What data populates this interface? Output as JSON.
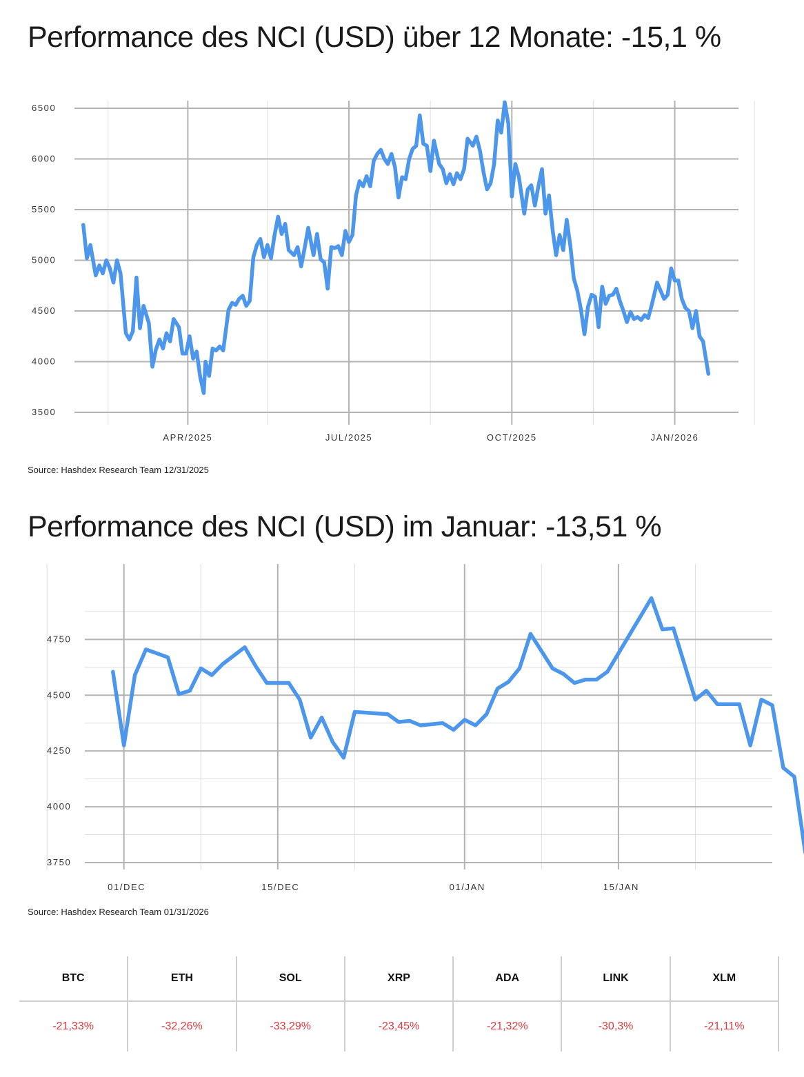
{
  "charts": {
    "annual": {
      "title": "Performance des NCI (USD) über 12 Monate: -15,1 %",
      "source": "Source: Hashdex Research Team 12/31/2025"
    },
    "monthly": {
      "title": "Performance des NCI (USD) im Januar: -13,51 %",
      "source": "Source: Hashdex Research Team 01/31/2026"
    }
  },
  "colors": {
    "line": "#4c96ec",
    "grid_major": "#b3b3b3",
    "grid_minor": "#dedede",
    "negative": "#e0393e"
  },
  "chart_data": [
    {
      "type": "line",
      "title": "Performance des NCI (USD) über 12 Monate: -15,1 %",
      "xlabel": "",
      "ylabel": "",
      "ylim": [
        3500,
        6500
      ],
      "y_ticks": [
        3500,
        4000,
        4500,
        5000,
        5500,
        6000,
        6500
      ],
      "xlim": [
        "2025-01-27",
        "2026-02-06"
      ],
      "x_ticks": [
        {
          "x": "2025-04-01",
          "label": "APR/2025"
        },
        {
          "x": "2025-07-01",
          "label": "JUL/2025"
        },
        {
          "x": "2025-10-01",
          "label": "OCT/2025"
        },
        {
          "x": "2026-01-01",
          "label": "JAN/2026"
        }
      ],
      "x_minor": [
        "2025-02-15",
        "2025-05-16",
        "2025-08-16",
        "2025-11-16",
        "2026-02-15"
      ],
      "grid": true,
      "series": [
        {
          "points": [
            [
              "2025-02-01",
              5350
            ],
            [
              "2025-02-03",
              5020
            ],
            [
              "2025-02-05",
              5150
            ],
            [
              "2025-02-08",
              4850
            ],
            [
              "2025-02-10",
              4950
            ],
            [
              "2025-02-12",
              4870
            ],
            [
              "2025-02-14",
              5000
            ],
            [
              "2025-02-16",
              4920
            ],
            [
              "2025-02-18",
              4780
            ],
            [
              "2025-02-20",
              5000
            ],
            [
              "2025-02-22",
              4870
            ],
            [
              "2025-02-25",
              4280
            ],
            [
              "2025-02-27",
              4220
            ],
            [
              "2025-03-01",
              4300
            ],
            [
              "2025-03-03",
              4830
            ],
            [
              "2025-03-05",
              4330
            ],
            [
              "2025-03-07",
              4550
            ],
            [
              "2025-03-10",
              4380
            ],
            [
              "2025-03-12",
              3950
            ],
            [
              "2025-03-14",
              4120
            ],
            [
              "2025-03-16",
              4220
            ],
            [
              "2025-03-18",
              4130
            ],
            [
              "2025-03-20",
              4280
            ],
            [
              "2025-03-22",
              4200
            ],
            [
              "2025-03-24",
              4420
            ],
            [
              "2025-03-27",
              4340
            ],
            [
              "2025-03-29",
              4080
            ],
            [
              "2025-03-31",
              4080
            ],
            [
              "2025-04-02",
              4250
            ],
            [
              "2025-04-04",
              4030
            ],
            [
              "2025-04-06",
              4100
            ],
            [
              "2025-04-08",
              3850
            ],
            [
              "2025-04-10",
              3690
            ],
            [
              "2025-04-11",
              4000
            ],
            [
              "2025-04-13",
              3860
            ],
            [
              "2025-04-15",
              4130
            ],
            [
              "2025-04-17",
              4110
            ],
            [
              "2025-04-19",
              4150
            ],
            [
              "2025-04-21",
              4110
            ],
            [
              "2025-04-24",
              4510
            ],
            [
              "2025-04-26",
              4580
            ],
            [
              "2025-04-28",
              4560
            ],
            [
              "2025-04-30",
              4620
            ],
            [
              "2025-05-02",
              4650
            ],
            [
              "2025-05-04",
              4550
            ],
            [
              "2025-05-06",
              4600
            ],
            [
              "2025-05-08",
              5030
            ],
            [
              "2025-05-10",
              5150
            ],
            [
              "2025-05-12",
              5210
            ],
            [
              "2025-05-14",
              5030
            ],
            [
              "2025-05-16",
              5150
            ],
            [
              "2025-05-18",
              5020
            ],
            [
              "2025-05-20",
              5250
            ],
            [
              "2025-05-22",
              5430
            ],
            [
              "2025-05-24",
              5260
            ],
            [
              "2025-05-26",
              5360
            ],
            [
              "2025-05-28",
              5100
            ],
            [
              "2025-05-31",
              5050
            ],
            [
              "2025-06-02",
              5130
            ],
            [
              "2025-06-04",
              4940
            ],
            [
              "2025-06-06",
              5120
            ],
            [
              "2025-06-08",
              5320
            ],
            [
              "2025-06-11",
              5050
            ],
            [
              "2025-06-13",
              5260
            ],
            [
              "2025-06-15",
              5010
            ],
            [
              "2025-06-17",
              4980
            ],
            [
              "2025-06-19",
              4720
            ],
            [
              "2025-06-21",
              5130
            ],
            [
              "2025-06-23",
              5120
            ],
            [
              "2025-06-25",
              5140
            ],
            [
              "2025-06-27",
              5050
            ],
            [
              "2025-06-29",
              5290
            ],
            [
              "2025-07-01",
              5180
            ],
            [
              "2025-07-03",
              5250
            ],
            [
              "2025-07-05",
              5640
            ],
            [
              "2025-07-07",
              5780
            ],
            [
              "2025-07-09",
              5730
            ],
            [
              "2025-07-11",
              5830
            ],
            [
              "2025-07-13",
              5730
            ],
            [
              "2025-07-15",
              5980
            ],
            [
              "2025-07-17",
              6050
            ],
            [
              "2025-07-19",
              6090
            ],
            [
              "2025-07-21",
              6000
            ],
            [
              "2025-07-23",
              5950
            ],
            [
              "2025-07-25",
              6050
            ],
            [
              "2025-07-27",
              5920
            ],
            [
              "2025-07-29",
              5620
            ],
            [
              "2025-07-31",
              5820
            ],
            [
              "2025-08-02",
              5800
            ],
            [
              "2025-08-04",
              6000
            ],
            [
              "2025-08-06",
              6100
            ],
            [
              "2025-08-08",
              6130
            ],
            [
              "2025-08-10",
              6430
            ],
            [
              "2025-08-12",
              6150
            ],
            [
              "2025-08-14",
              6130
            ],
            [
              "2025-08-16",
              5880
            ],
            [
              "2025-08-18",
              6180
            ],
            [
              "2025-08-21",
              5950
            ],
            [
              "2025-08-23",
              5900
            ],
            [
              "2025-08-25",
              5760
            ],
            [
              "2025-08-27",
              5850
            ],
            [
              "2025-08-29",
              5750
            ],
            [
              "2025-08-31",
              5860
            ],
            [
              "2025-09-02",
              5800
            ],
            [
              "2025-09-04",
              5900
            ],
            [
              "2025-09-06",
              6200
            ],
            [
              "2025-09-09",
              6130
            ],
            [
              "2025-09-11",
              6220
            ],
            [
              "2025-09-13",
              6080
            ],
            [
              "2025-09-15",
              5870
            ],
            [
              "2025-09-17",
              5700
            ],
            [
              "2025-09-19",
              5760
            ],
            [
              "2025-09-21",
              5950
            ],
            [
              "2025-09-23",
              6380
            ],
            [
              "2025-09-25",
              6260
            ],
            [
              "2025-09-27",
              6560
            ],
            [
              "2025-09-29",
              6350
            ],
            [
              "2025-10-01",
              5630
            ],
            [
              "2025-10-03",
              5950
            ],
            [
              "2025-10-05",
              5820
            ],
            [
              "2025-10-08",
              5460
            ],
            [
              "2025-10-10",
              5700
            ],
            [
              "2025-10-12",
              5740
            ],
            [
              "2025-10-14",
              5540
            ],
            [
              "2025-10-16",
              5730
            ],
            [
              "2025-10-18",
              5900
            ],
            [
              "2025-10-20",
              5460
            ],
            [
              "2025-10-22",
              5640
            ],
            [
              "2025-10-24",
              5300
            ],
            [
              "2025-10-26",
              5050
            ],
            [
              "2025-10-28",
              5250
            ],
            [
              "2025-10-30",
              5100
            ],
            [
              "2025-11-01",
              5400
            ],
            [
              "2025-11-03",
              5150
            ],
            [
              "2025-11-05",
              4820
            ],
            [
              "2025-11-07",
              4700
            ],
            [
              "2025-11-09",
              4520
            ],
            [
              "2025-11-11",
              4270
            ],
            [
              "2025-11-13",
              4540
            ],
            [
              "2025-11-15",
              4660
            ],
            [
              "2025-11-17",
              4640
            ],
            [
              "2025-11-19",
              4340
            ],
            [
              "2025-11-21",
              4740
            ],
            [
              "2025-11-23",
              4570
            ],
            [
              "2025-11-25",
              4650
            ],
            [
              "2025-11-27",
              4660
            ],
            [
              "2025-11-29",
              4720
            ],
            [
              "2025-12-01",
              4600
            ],
            [
              "2025-12-03",
              4500
            ],
            [
              "2025-12-05",
              4390
            ],
            [
              "2025-12-07",
              4490
            ],
            [
              "2025-12-09",
              4420
            ],
            [
              "2025-12-11",
              4440
            ],
            [
              "2025-12-13",
              4410
            ],
            [
              "2025-12-15",
              4460
            ],
            [
              "2025-12-17",
              4430
            ],
            [
              "2025-12-19",
              4560
            ],
            [
              "2025-12-22",
              4780
            ],
            [
              "2025-12-24",
              4700
            ],
            [
              "2025-12-26",
              4620
            ],
            [
              "2025-12-28",
              4660
            ],
            [
              "2025-12-30",
              4920
            ],
            [
              "2026-01-01",
              4800
            ],
            [
              "2026-01-03",
              4800
            ],
            [
              "2026-01-05",
              4620
            ],
            [
              "2026-01-07",
              4530
            ],
            [
              "2026-01-09",
              4500
            ],
            [
              "2026-01-11",
              4330
            ],
            [
              "2026-01-13",
              4500
            ],
            [
              "2026-01-15",
              4250
            ],
            [
              "2026-01-17",
              4200
            ],
            [
              "2026-01-20",
              3880
            ]
          ]
        }
      ]
    },
    {
      "type": "line",
      "title": "Performance des NCI (USD) im Januar: -13,51 %",
      "xlabel": "",
      "ylabel": "",
      "ylim": [
        3750,
        4850
      ],
      "y_ticks": [
        3750,
        4000,
        4250,
        4500,
        4750
      ],
      "y_minor": [
        3875,
        4125,
        4375,
        4625,
        4875
      ],
      "xlim": [
        "2025-11-26",
        "2026-01-29"
      ],
      "x_ticks": [
        {
          "x": "2025-12-01",
          "label": "01/DEC"
        },
        {
          "x": "2025-12-15",
          "label": "15/DEC"
        },
        {
          "x": "2026-01-01",
          "label": "01/JAN"
        },
        {
          "x": "2026-01-15",
          "label": "15/JAN"
        }
      ],
      "x_minor": [
        "2025-11-24",
        "2025-12-08",
        "2025-12-22",
        "2026-01-08",
        "2026-01-22"
      ],
      "grid": true,
      "series": [
        {
          "points": [
            [
              "2025-11-30",
              4605
            ],
            [
              "2025-12-01",
              4275
            ],
            [
              "2025-12-02",
              4590
            ],
            [
              "2025-12-03",
              4705
            ],
            [
              "2025-12-05",
              4670
            ],
            [
              "2025-12-06",
              4505
            ],
            [
              "2025-12-07",
              4520
            ],
            [
              "2025-12-08",
              4620
            ],
            [
              "2025-12-09",
              4590
            ],
            [
              "2025-12-10",
              4640
            ],
            [
              "2025-12-12",
              4715
            ],
            [
              "2025-12-13",
              4630
            ],
            [
              "2025-12-14",
              4555
            ],
            [
              "2025-12-16",
              4555
            ],
            [
              "2025-12-17",
              4480
            ],
            [
              "2025-12-18",
              4310
            ],
            [
              "2025-12-19",
              4400
            ],
            [
              "2025-12-20",
              4290
            ],
            [
              "2025-12-21",
              4220
            ],
            [
              "2025-12-22",
              4425
            ],
            [
              "2025-12-25",
              4415
            ],
            [
              "2025-12-26",
              4380
            ],
            [
              "2025-12-27",
              4385
            ],
            [
              "2025-12-28",
              4365
            ],
            [
              "2025-12-30",
              4375
            ],
            [
              "2025-12-31",
              4345
            ],
            [
              "2026-01-01",
              4390
            ],
            [
              "2026-01-02",
              4365
            ],
            [
              "2026-01-03",
              4415
            ],
            [
              "2026-01-04",
              4530
            ],
            [
              "2026-01-05",
              4560
            ],
            [
              "2026-01-06",
              4620
            ],
            [
              "2026-01-07",
              4775
            ],
            [
              "2026-01-09",
              4620
            ],
            [
              "2026-01-10",
              4595
            ],
            [
              "2026-01-11",
              4555
            ],
            [
              "2026-01-12",
              4570
            ],
            [
              "2026-01-13",
              4570
            ],
            [
              "2026-01-14",
              4605
            ],
            [
              "2026-01-18",
              4935
            ],
            [
              "2026-01-19",
              4795
            ],
            [
              "2026-01-20",
              4800
            ],
            [
              "2026-01-22",
              4480
            ],
            [
              "2026-01-23",
              4520
            ],
            [
              "2026-01-24",
              4460
            ],
            [
              "2026-01-26",
              4460
            ],
            [
              "2026-01-27",
              4275
            ],
            [
              "2026-01-28",
              4480
            ],
            [
              "2026-01-29",
              4455
            ],
            [
              "2026-01-30",
              4175
            ],
            [
              "2026-01-31",
              4135
            ],
            [
              "2026-02-01",
              3795
            ]
          ]
        }
      ]
    }
  ],
  "assets_table": {
    "headers": [
      "BTC",
      "ETH",
      "SOL",
      "XRP",
      "ADA",
      "LINK",
      "XLM"
    ],
    "values": [
      "-21,33%",
      "-32,26%",
      "-33,29%",
      "-23,45%",
      "-21,32%",
      "-30,3%",
      "-21,11%"
    ]
  }
}
